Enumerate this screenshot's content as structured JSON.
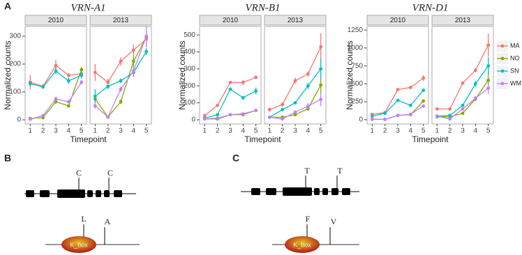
{
  "panels": {
    "a": "A",
    "b": "B",
    "c": "C"
  },
  "legend": {
    "items": [
      {
        "name": "MA",
        "color": "#F8766D"
      },
      {
        "name": "NO",
        "color": "#7CAE00"
      },
      {
        "name": "SN",
        "color": "#00BFC4"
      },
      {
        "name": "WM",
        "color": "#C77CFF"
      }
    ]
  },
  "chart_data": [
    {
      "type": "line",
      "title": "VRN-A1",
      "xlabel": "Timepoint",
      "ylabel": "Normalized counts",
      "x": [
        1,
        2,
        3,
        4,
        5
      ],
      "xticks": [
        1,
        2,
        3,
        4,
        5
      ],
      "xlim": [
        0.6,
        5.4
      ],
      "ylim": [
        -15,
        335
      ],
      "yticks": [
        0,
        100,
        200,
        300
      ],
      "facets": [
        {
          "label": "2010",
          "series": [
            {
              "values": [
                135,
                120,
                195,
                160,
                165
              ],
              "errors": [
                25,
                8,
                20,
                8,
                12
              ]
            },
            {
              "values": [
                5,
                8,
                65,
                50,
                180
              ],
              "errors": [
                3,
                3,
                8,
                6,
                10
              ]
            },
            {
              "values": [
                130,
                118,
                175,
                140,
                160
              ],
              "errors": [
                10,
                6,
                12,
                10,
                12
              ]
            },
            {
              "values": [
                2,
                15,
                75,
                65,
                135
              ],
              "errors": [
                2,
                4,
                8,
                6,
                8
              ]
            }
          ]
        },
        {
          "label": "2013",
          "series": [
            {
              "values": [
                170,
                135,
                210,
                250,
                290
              ],
              "errors": [
                30,
                12,
                15,
                20,
                30
              ]
            },
            {
              "values": [
                75,
                10,
                65,
                210,
                295
              ],
              "errors": [
                10,
                4,
                8,
                20,
                25
              ]
            },
            {
              "values": [
                85,
                120,
                140,
                170,
                245
              ],
              "errors": [
                25,
                10,
                8,
                15,
                12
              ]
            },
            {
              "values": [
                50,
                10,
                110,
                175,
                300
              ],
              "errors": [
                10,
                4,
                10,
                15,
                35
              ]
            }
          ]
        }
      ]
    },
    {
      "type": "line",
      "title": "VRN-B1",
      "xlabel": "Timepoint",
      "ylabel": "Normalized counts",
      "x": [
        1,
        2,
        3,
        4,
        5
      ],
      "xticks": [
        1,
        2,
        3,
        4,
        5
      ],
      "xlim": [
        0.6,
        5.4
      ],
      "ylim": [
        -25,
        550
      ],
      "yticks": [
        0,
        100,
        200,
        300,
        400,
        500
      ],
      "facets": [
        {
          "label": "2010",
          "series": [
            {
              "values": [
                25,
                85,
                220,
                220,
                250
              ],
              "errors": [
                6,
                8,
                8,
                15,
                10
              ]
            },
            {
              "values": [
                5,
                5,
                30,
                30,
                55
              ],
              "errors": [
                3,
                3,
                5,
                5,
                8
              ]
            },
            {
              "values": [
                10,
                30,
                180,
                130,
                170
              ],
              "errors": [
                4,
                6,
                8,
                12,
                20
              ]
            },
            {
              "values": [
                5,
                10,
                30,
                35,
                55
              ],
              "errors": [
                3,
                3,
                5,
                5,
                6
              ]
            }
          ]
        },
        {
          "label": "2013",
          "series": [
            {
              "values": [
                60,
                90,
                230,
                270,
                430
              ],
              "errors": [
                12,
                12,
                18,
                15,
                80
              ]
            },
            {
              "values": [
                15,
                15,
                30,
                65,
                205
              ],
              "errors": [
                5,
                5,
                8,
                12,
                50
              ]
            },
            {
              "values": [
                15,
                60,
                100,
                200,
                300
              ],
              "errors": [
                5,
                8,
                10,
                18,
                60
              ]
            },
            {
              "values": [
                15,
                5,
                45,
                80,
                120
              ],
              "errors": [
                5,
                3,
                10,
                20,
                40
              ]
            }
          ]
        }
      ]
    },
    {
      "type": "line",
      "title": "VRN-D1",
      "xlabel": "Timepoint",
      "ylabel": "Normalized counts",
      "x": [
        1,
        2,
        3,
        4,
        5
      ],
      "xticks": [
        1,
        2,
        3,
        4,
        5
      ],
      "xlim": [
        0.6,
        5.4
      ],
      "ylim": [
        -60,
        1300
      ],
      "yticks": [
        0,
        250,
        500,
        750,
        1000,
        1250
      ],
      "facets": [
        {
          "label": "2010",
          "series": [
            {
              "values": [
                75,
                100,
                420,
                450,
                580
              ],
              "errors": [
                15,
                15,
                15,
                20,
                40
              ]
            },
            {
              "values": [
                5,
                5,
                60,
                70,
                260
              ],
              "errors": [
                3,
                3,
                10,
                10,
                25
              ]
            },
            {
              "values": [
                50,
                90,
                270,
                200,
                410
              ],
              "errors": [
                10,
                12,
                15,
                15,
                20
              ]
            },
            {
              "values": [
                5,
                5,
                60,
                75,
                190
              ],
              "errors": [
                3,
                3,
                10,
                10,
                20
              ]
            }
          ]
        },
        {
          "label": "2013",
          "series": [
            {
              "values": [
                150,
                150,
                510,
                690,
                1040
              ],
              "errors": [
                20,
                15,
                20,
                30,
                160
              ]
            },
            {
              "values": [
                40,
                40,
                90,
                290,
                550
              ],
              "errors": [
                10,
                10,
                15,
                30,
                110
              ]
            },
            {
              "values": [
                50,
                60,
                200,
                500,
                750
              ],
              "errors": [
                10,
                12,
                20,
                40,
                120
              ]
            },
            {
              "values": [
                50,
                10,
                150,
                300,
                440
              ],
              "errors": [
                10,
                5,
                20,
                30,
                80
              ]
            }
          ]
        }
      ]
    }
  ],
  "diagrams": [
    {
      "gene_labels": [
        "C",
        "C"
      ],
      "protein_labels": [
        "L",
        "A"
      ],
      "domain": "K_box"
    },
    {
      "gene_labels": [
        "T",
        "T"
      ],
      "protein_labels": [
        "F",
        "V"
      ],
      "domain": "K_box"
    }
  ]
}
